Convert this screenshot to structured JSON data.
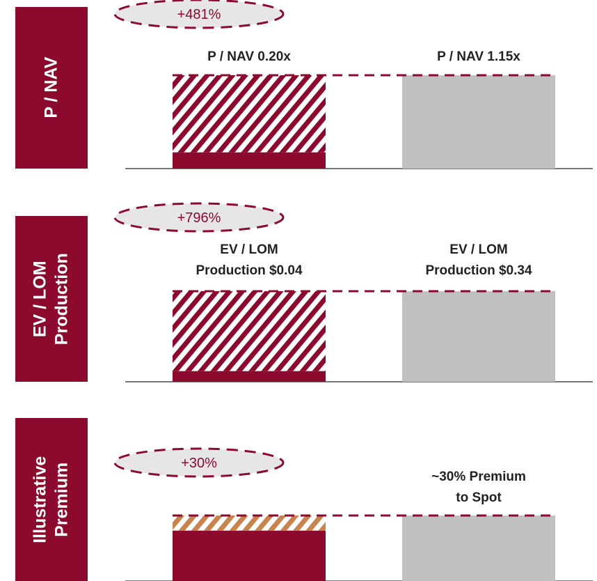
{
  "colors": {
    "brand": "#8b0a2d",
    "peer": "#c0c0c0",
    "hatch_premium": "#c9834f",
    "axis": "#777777"
  },
  "chart_data": [
    {
      "type": "bar",
      "panel_label": [
        "P / NAV"
      ],
      "uplift": "+481%",
      "categories": [
        "P / NAV 0.20x",
        "P / NAV 1.15x"
      ],
      "category_lines": [
        [
          "P / NAV 0.20x"
        ],
        [
          "P / NAV 1.15x"
        ]
      ],
      "values": [
        0.2,
        1.15
      ],
      "ylim": [
        0,
        1.15
      ],
      "hatch": "brand"
    },
    {
      "type": "bar",
      "panel_label": [
        "EV / LOM",
        "Production"
      ],
      "uplift": "+796%",
      "categories": [
        "EV / LOM Production $0.04",
        "EV / LOM Production $0.34"
      ],
      "category_lines": [
        [
          "EV / LOM",
          "Production $0.04"
        ],
        [
          "EV / LOM",
          "Production $0.34"
        ]
      ],
      "values": [
        0.04,
        0.34
      ],
      "ylim": [
        0,
        0.34
      ],
      "hatch": "brand"
    },
    {
      "type": "bar",
      "panel_label": [
        "Illustrative",
        "Premium"
      ],
      "uplift": "+30%",
      "categories": [
        "",
        "~30% Premium to Spot"
      ],
      "category_lines": [
        [],
        [
          "~30% Premium",
          "to Spot"
        ]
      ],
      "values": [
        1.0,
        1.3
      ],
      "ylim": [
        0,
        1.3
      ],
      "hatch": "premium"
    }
  ]
}
